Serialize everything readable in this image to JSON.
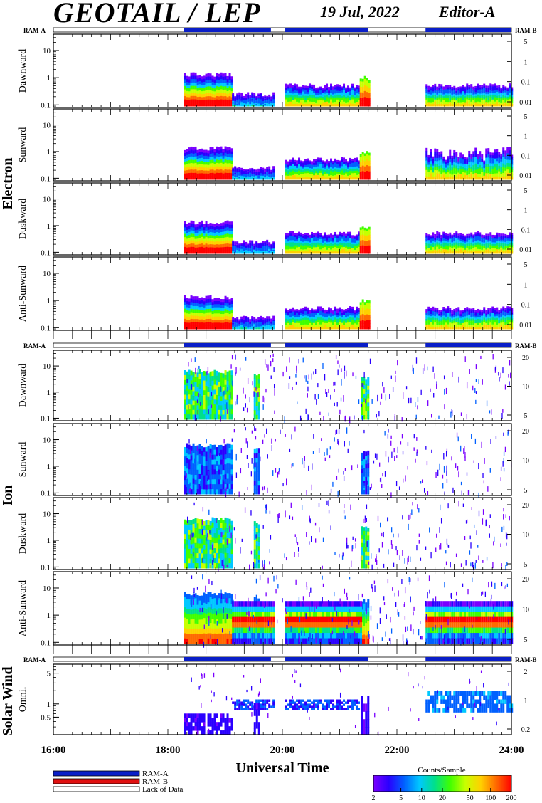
{
  "header": {
    "title": "GEOTAIL / LEP",
    "date": "19 Jul, 2022",
    "editor": "Editor-A"
  },
  "ram_bar": {
    "left_label": "RAM-A",
    "right_label": "RAM-B",
    "segments": [
      {
        "start": 18.28,
        "end": 19.8,
        "state": "RAM-A"
      },
      {
        "start": 20.05,
        "end": 21.5,
        "state": "RAM-A"
      },
      {
        "start": 22.5,
        "end": 24.0,
        "state": "RAM-A"
      }
    ]
  },
  "groups": [
    {
      "label": "Electron"
    },
    {
      "label": "Ion"
    },
    {
      "label": "Solar Wind"
    }
  ],
  "x_axis": {
    "label": "Universal Time",
    "ticks": [
      "16:00",
      "18:00",
      "20:00",
      "22:00",
      "24:00"
    ],
    "range": [
      16,
      24
    ]
  },
  "legend": {
    "items": [
      {
        "label": "RAM-A",
        "color": "#0a1ec8"
      },
      {
        "label": "RAM-B",
        "color": "#e01010"
      },
      {
        "label": "Lack of Data",
        "color": "#ffffff"
      }
    ]
  },
  "colorbar": {
    "title": "Counts/Sample",
    "ticks": [
      "2",
      "5",
      "10",
      "20",
      "50",
      "100",
      "200"
    ],
    "range": [
      2,
      200
    ],
    "scale": "log",
    "colors": [
      "#7a00ff",
      "#2a00ff",
      "#0060ff",
      "#00c8ff",
      "#00e08a",
      "#40ff00",
      "#c8ff00",
      "#ffd000",
      "#ff6a00",
      "#ff0000"
    ]
  },
  "chart_data": {
    "type": "heatmap",
    "scale_y": "log",
    "panels": [
      {
        "group": "Electron",
        "ylabel": "Dawnward",
        "left_ticks": [
          "10",
          "1",
          "0.1"
        ],
        "left_range": [
          0.08,
          40
        ],
        "right_ticks": [
          "5",
          "1",
          "0.1",
          "0.01"
        ],
        "ram_bar": false
      },
      {
        "group": "Electron",
        "ylabel": "Sunward",
        "left_ticks": [
          "10",
          "1",
          "0.1"
        ],
        "left_range": [
          0.08,
          40
        ],
        "right_ticks": [
          "5",
          "1",
          "0.1",
          "0.01"
        ],
        "ram_bar": false
      },
      {
        "group": "Electron",
        "ylabel": "Duskward",
        "left_ticks": [
          "10",
          "1",
          "0.1"
        ],
        "left_range": [
          0.08,
          40
        ],
        "right_ticks": [
          "5",
          "1",
          "0.1",
          "0.01"
        ],
        "ram_bar": false
      },
      {
        "group": "Electron",
        "ylabel": "Anti-Sunward",
        "left_ticks": [
          "10",
          "1",
          "0.1"
        ],
        "left_range": [
          0.08,
          40
        ],
        "right_ticks": [
          "5",
          "1",
          "0.1",
          "0.01"
        ],
        "ram_bar": false
      },
      {
        "group": "Ion",
        "ylabel": "Dawnward",
        "left_ticks": [
          "10",
          "1",
          "0.1"
        ],
        "left_range": [
          0.08,
          40
        ],
        "right_ticks": [
          "20",
          "10",
          "5"
        ],
        "ram_bar": true
      },
      {
        "group": "Ion",
        "ylabel": "Sunward",
        "left_ticks": [
          "10",
          "1",
          "0.1"
        ],
        "left_range": [
          0.08,
          40
        ],
        "right_ticks": [
          "20",
          "10",
          "5"
        ],
        "ram_bar": false
      },
      {
        "group": "Ion",
        "ylabel": "Duskward",
        "left_ticks": [
          "10",
          "1",
          "0.1"
        ],
        "left_range": [
          0.08,
          40
        ],
        "right_ticks": [
          "20",
          "10",
          "5"
        ],
        "ram_bar": false
      },
      {
        "group": "Ion",
        "ylabel": "Anti-Sunward",
        "left_ticks": [
          "10",
          "1",
          "0.1"
        ],
        "left_range": [
          0.08,
          40
        ],
        "right_ticks": [
          "20",
          "10",
          "5"
        ],
        "ram_bar": false
      },
      {
        "group": "Solar Wind",
        "ylabel": "Omni.",
        "left_ticks": [
          "5",
          "1",
          "0.5"
        ],
        "left_range": [
          0.2,
          8
        ],
        "right_ticks": [
          "2",
          "1",
          "0.2"
        ],
        "ram_bar": true
      }
    ],
    "data_intervals": [
      {
        "start": 18.28,
        "end": 19.12
      },
      {
        "start": 19.12,
        "end": 19.83
      },
      {
        "start": 20.05,
        "end": 21.35
      },
      {
        "start": 21.35,
        "end": 21.5
      },
      {
        "start": 22.5,
        "end": 24.0
      }
    ]
  }
}
